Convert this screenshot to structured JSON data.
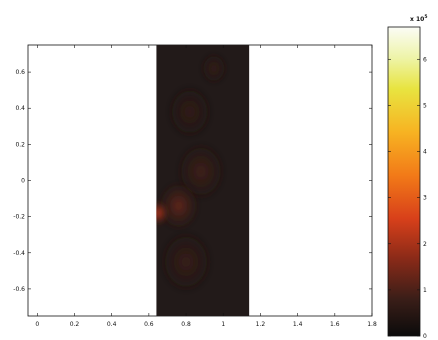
{
  "chart_data": {
    "type": "heatmap",
    "title": "",
    "xlabel": "",
    "ylabel": "",
    "xlim": [
      -0.05,
      1.8
    ],
    "ylim": [
      -0.75,
      0.75
    ],
    "x_ticks": [
      0,
      0.2,
      0.4,
      0.6,
      0.8,
      1,
      1.2,
      1.4,
      1.6,
      1.8
    ],
    "x_tick_labels": [
      "0",
      "0.2",
      "0.4",
      "0.6",
      "0.8",
      "1",
      "1.2",
      "1.4",
      "1.6",
      "1.8"
    ],
    "y_ticks": [
      0.6,
      0.4,
      0.2,
      0,
      -0.2,
      -0.4,
      -0.6
    ],
    "y_tick_labels": [
      "0.6",
      "0.4",
      "0.2",
      "0",
      "-0.2",
      "-0.4",
      "-0.6"
    ],
    "data_extent": {
      "x": [
        0.64,
        1.14
      ],
      "y": [
        -0.75,
        0.75
      ]
    },
    "colormap": "hot",
    "colorbar": {
      "multiplier_label": "x 10",
      "multiplier_exponent": "5",
      "range": [
        0,
        6.7
      ],
      "ticks": [
        0,
        1,
        2,
        3,
        4,
        5,
        6
      ],
      "tick_labels": [
        "0",
        "1",
        "2",
        "3",
        "4",
        "5",
        "6"
      ]
    },
    "features": [
      {
        "kind": "peak",
        "x": 0.65,
        "y": -0.18,
        "value": 2.4,
        "spread": 0.055
      },
      {
        "kind": "blob",
        "x": 0.76,
        "y": -0.14,
        "value": 1.3,
        "spread": 0.11
      },
      {
        "kind": "blob",
        "x": 0.8,
        "y": -0.45,
        "value": 0.8,
        "spread": 0.14
      },
      {
        "kind": "blob",
        "x": 0.88,
        "y": 0.05,
        "value": 0.9,
        "spread": 0.13
      },
      {
        "kind": "blob",
        "x": 0.82,
        "y": 0.38,
        "value": 0.7,
        "spread": 0.12
      },
      {
        "kind": "blob",
        "x": 0.95,
        "y": 0.62,
        "value": 0.75,
        "spread": 0.07
      }
    ],
    "grid": false
  }
}
